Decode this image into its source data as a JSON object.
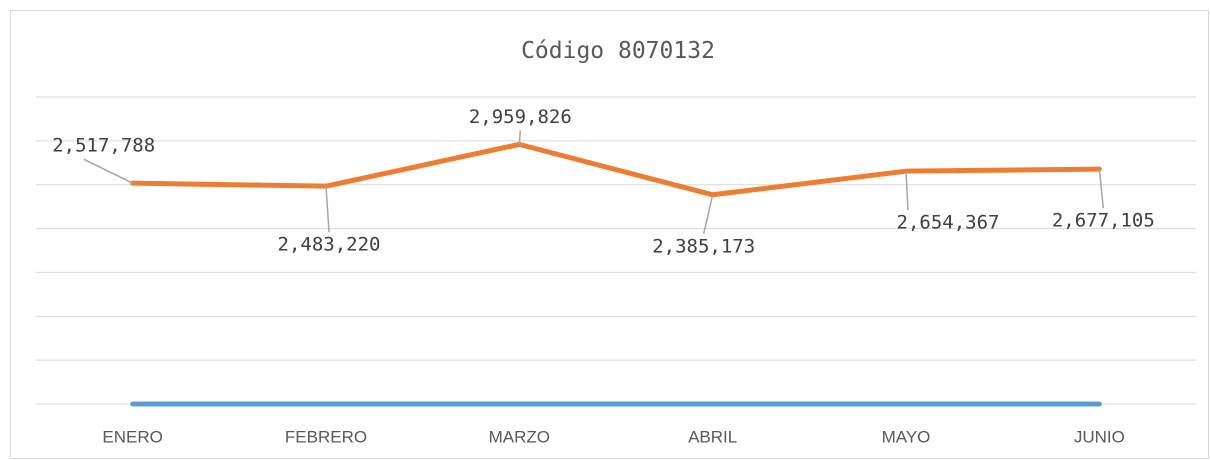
{
  "chart_data": {
    "type": "line",
    "title": "Código 8070132",
    "categories": [
      "ENERO",
      "FEBRERO",
      "MARZO",
      "ABRIL",
      "MAYO",
      "JUNIO"
    ],
    "series": [
      {
        "color": "#5b9bd5",
        "values": [
          0,
          0,
          0,
          0,
          0,
          0
        ]
      },
      {
        "color": "#ed7d31",
        "values": [
          2517788,
          2483220,
          2959826,
          2385173,
          2654367,
          2677105
        ],
        "value_labels": [
          "2,517,788",
          "2,483,220",
          "2,959,826",
          "2,385,173",
          "2,654,367",
          "2,677,105"
        ]
      }
    ],
    "ylim": [
      0,
      3500000
    ],
    "yticks": [
      0,
      500000,
      1000000,
      1500000,
      2000000,
      2500000,
      3000000,
      3500000
    ],
    "grid": true
  }
}
